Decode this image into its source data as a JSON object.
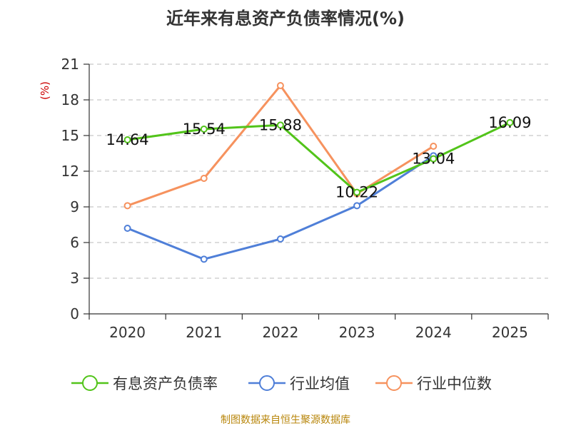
{
  "chart_data": {
    "type": "line",
    "title": "近年来有息资产负债率情况(%)",
    "ylabel": "(%)",
    "categories": [
      "2020",
      "2021",
      "2022",
      "2023",
      "2024",
      "2025"
    ],
    "ylim": [
      0,
      21
    ],
    "yticks": [
      0,
      3,
      6,
      9,
      12,
      15,
      18,
      21
    ],
    "grid": true,
    "legend_position": "bottom",
    "series": [
      {
        "name": "有息资产负债率",
        "color": "#52c41a",
        "values": [
          14.64,
          15.54,
          15.88,
          10.22,
          13.04,
          16.09
        ],
        "labels": [
          "14.64",
          "15.54",
          "15.88",
          "10.22",
          "13.04",
          "16.09"
        ]
      },
      {
        "name": "行业均值",
        "color": "#4f7fd8",
        "values": [
          7.2,
          4.6,
          6.3,
          9.1,
          13.3,
          null
        ]
      },
      {
        "name": "行业中位数",
        "color": "#f6925e",
        "values": [
          9.1,
          11.4,
          19.2,
          10.1,
          14.1,
          null
        ]
      }
    ]
  },
  "source": "制图数据来自恒生聚源数据库"
}
